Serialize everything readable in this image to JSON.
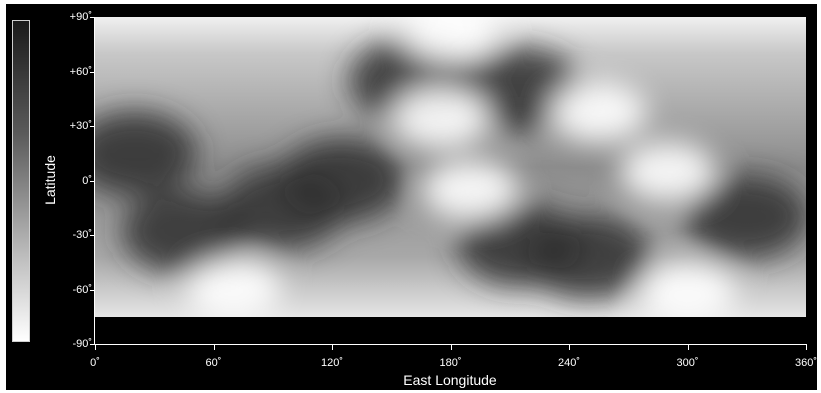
{
  "chart_data": {
    "type": "heatmap",
    "xlabel": "East Longitude",
    "ylabel": "Latitude",
    "xlim": [
      0,
      360
    ],
    "ylim": [
      -90,
      90
    ],
    "x_ticks": [
      "0˚",
      "60˚",
      "120˚",
      "180˚",
      "240˚",
      "300˚",
      "360˚"
    ],
    "y_ticks": [
      "+90˚",
      "+60˚",
      "+30˚",
      "0˚",
      "-30˚",
      "-60˚",
      "-90˚"
    ],
    "colorbar": "grayscale, dark at top to white at bottom",
    "data_coverage_lat": [
      -75,
      90
    ],
    "features": [
      {
        "lon": 20,
        "lat": 15,
        "tone": "dark"
      },
      {
        "lon": 45,
        "lat": -28,
        "tone": "dark"
      },
      {
        "lon": 125,
        "lat": 0,
        "tone": "dark"
      },
      {
        "lon": 95,
        "lat": -15,
        "tone": "dark"
      },
      {
        "lon": 215,
        "lat": 50,
        "tone": "dark"
      },
      {
        "lon": 250,
        "lat": -42,
        "tone": "dark"
      },
      {
        "lon": 215,
        "lat": -35,
        "tone": "dark"
      },
      {
        "lon": 330,
        "lat": -20,
        "tone": "dark"
      },
      {
        "lon": 160,
        "lat": 55,
        "tone": "dark"
      },
      {
        "lon": 190,
        "lat": -5,
        "tone": "bright"
      },
      {
        "lon": 175,
        "lat": 35,
        "tone": "bright"
      },
      {
        "lon": 255,
        "lat": 38,
        "tone": "bright"
      },
      {
        "lon": 70,
        "lat": -60,
        "tone": "bright"
      },
      {
        "lon": 290,
        "lat": 5,
        "tone": "bright"
      },
      {
        "lon": 180,
        "lat": 82,
        "tone": "bright"
      },
      {
        "lon": 300,
        "lat": -62,
        "tone": "bright"
      }
    ]
  },
  "colors": {
    "background": "#000000",
    "axis": "#ffffff",
    "map_base": "#9a9a9a"
  }
}
